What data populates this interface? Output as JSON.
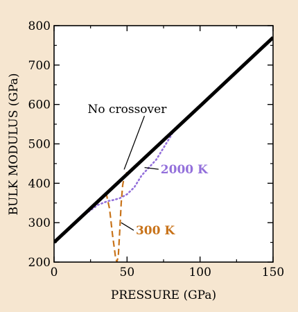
{
  "chart_data": {
    "type": "line",
    "title": "",
    "xlabel": "PRESSURE (GPa)",
    "ylabel": "BULK MODULUS (GPa)",
    "xlim": [
      0,
      150
    ],
    "ylim": [
      200,
      800
    ],
    "x_ticks": [
      0,
      50,
      100,
      150
    ],
    "y_ticks": [
      200,
      300,
      400,
      500,
      600,
      700,
      800
    ],
    "x_tick_labels": [
      "0",
      "50",
      "100",
      "150"
    ],
    "y_tick_labels": [
      "200",
      "300",
      "400",
      "500",
      "600",
      "700",
      "800"
    ],
    "grid": false,
    "legend": "none",
    "series": [
      {
        "style": "solid",
        "color": "#000000",
        "x": [
          0,
          50,
          100,
          150
        ],
        "y": [
          250,
          423,
          596,
          770
        ]
      },
      {
        "style": "dotted",
        "color": "#9370db",
        "x": [
          0,
          10,
          20,
          30,
          37,
          40,
          45,
          50,
          55,
          60,
          65,
          70,
          75,
          80,
          83
        ],
        "y": [
          252,
          285,
          318,
          345,
          355,
          357,
          362,
          372,
          390,
          420,
          440,
          460,
          490,
          520,
          540
        ]
      },
      {
        "style": "dashed",
        "color": "#c8731a",
        "x": [
          0,
          10,
          20,
          30,
          34,
          36,
          38,
          40,
          42,
          43,
          44,
          45,
          46,
          47,
          48,
          49,
          50
        ],
        "y": [
          252,
          286,
          320,
          354,
          368,
          370,
          335,
          270,
          215,
          200,
          215,
          280,
          350,
          395,
          415,
          422,
          428
        ]
      }
    ],
    "annotations": [
      {
        "text": "No crossover",
        "x": 23,
        "y": 578,
        "arrow_to": [
          48,
          435
        ]
      },
      {
        "text": "2000 K",
        "x": 73,
        "y": 425,
        "color": "#9370db",
        "bold": true,
        "arrow_to": [
          62,
          440
        ]
      },
      {
        "text": "300 K",
        "x": 56,
        "y": 270,
        "color": "#c8731a",
        "bold": true,
        "arrow_to": [
          46,
          300
        ]
      }
    ]
  }
}
